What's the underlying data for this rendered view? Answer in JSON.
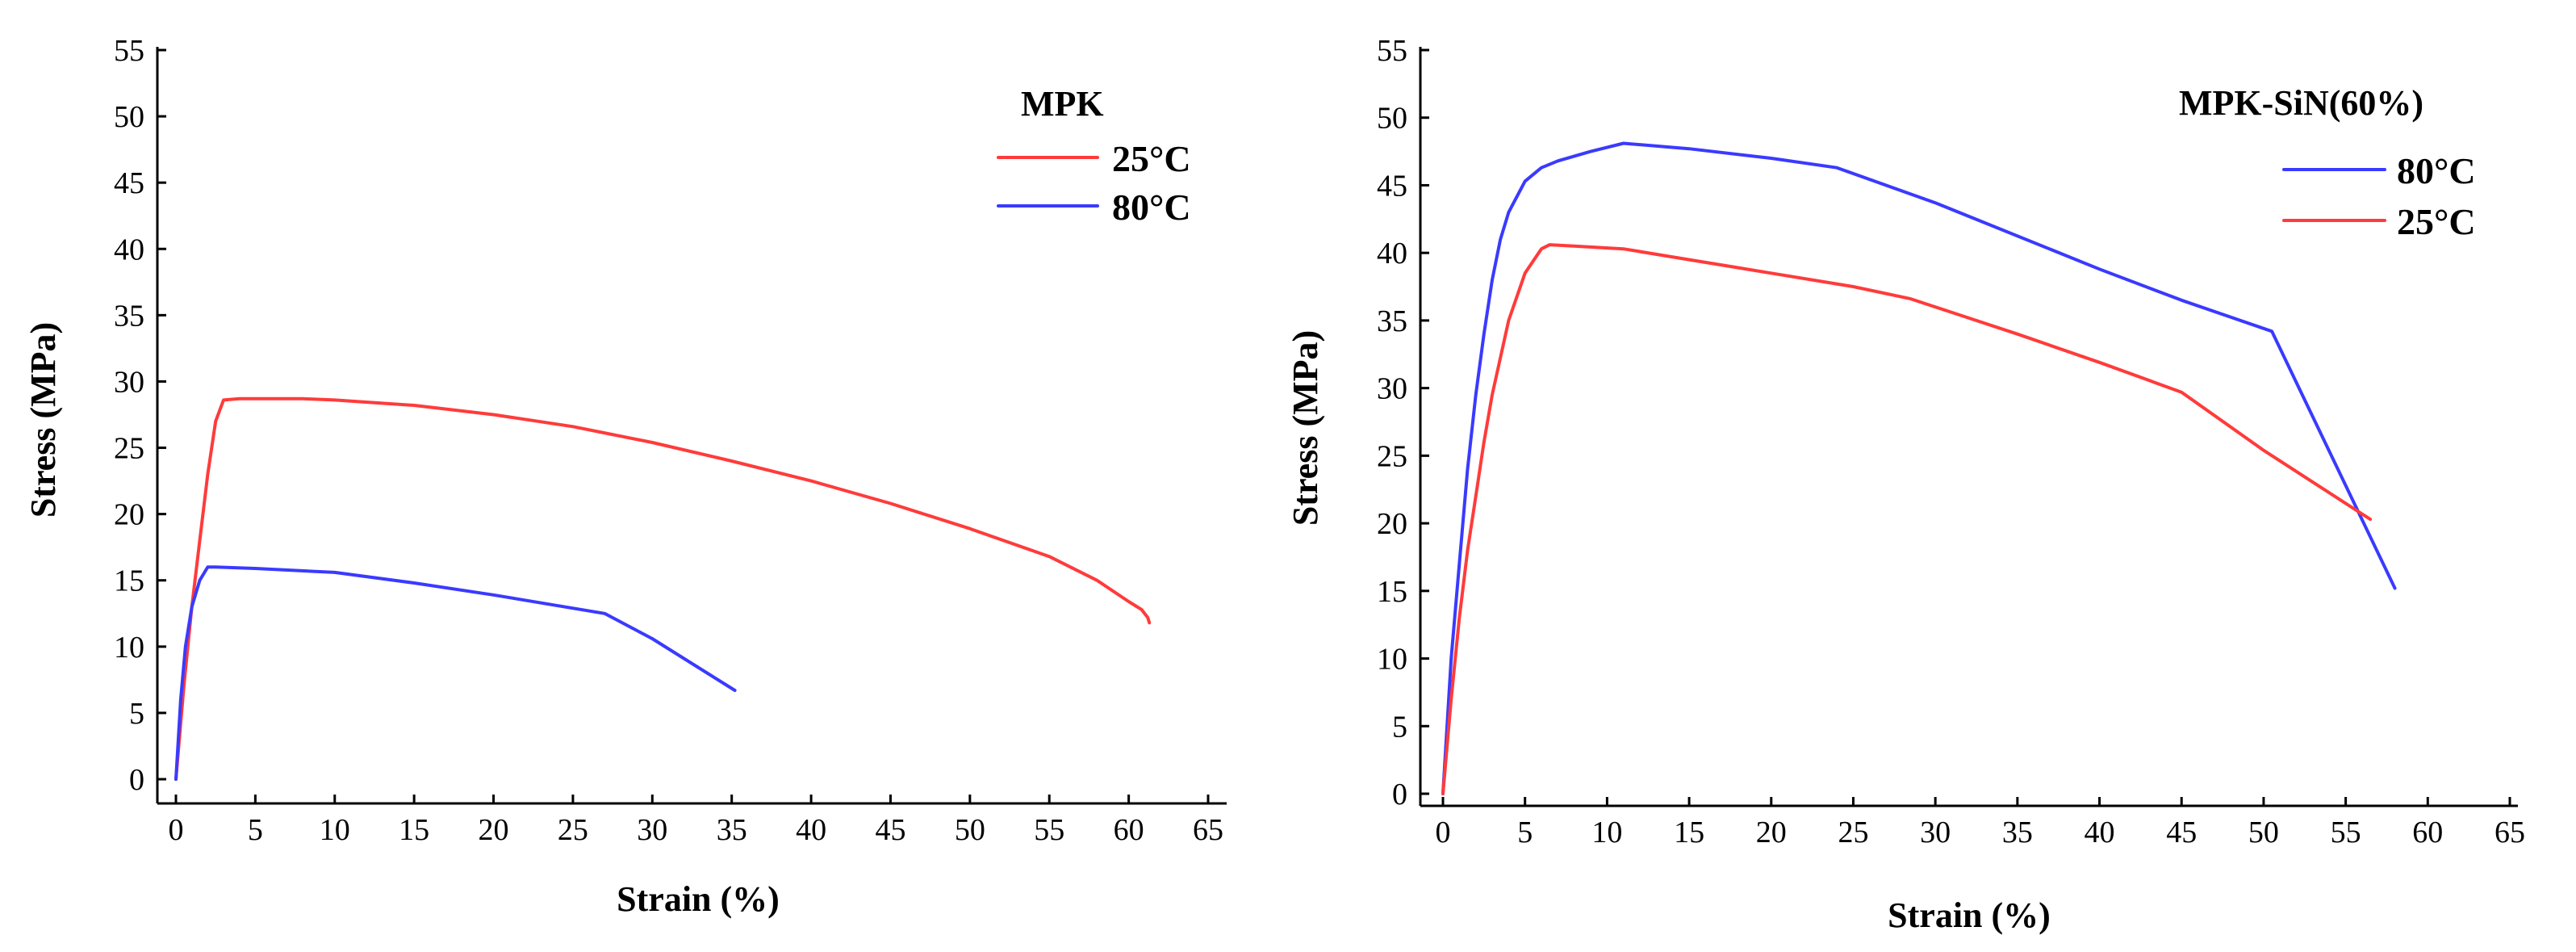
{
  "colors": {
    "red": "#ff3b3b",
    "blue": "#3a3aff",
    "axis": "#000000"
  },
  "chart_data": [
    {
      "type": "line",
      "title": "",
      "legend_title": "MPK",
      "legend_position": "top-right",
      "xlabel": "Strain (%)",
      "ylabel": "Stress (MPa)",
      "xlim": [
        0,
        65
      ],
      "ylim": [
        0,
        55
      ],
      "xticks": [
        0,
        5,
        10,
        15,
        20,
        25,
        30,
        35,
        40,
        45,
        50,
        55,
        60,
        65
      ],
      "yticks": [
        0,
        5,
        10,
        15,
        20,
        25,
        30,
        35,
        40,
        45,
        50,
        55
      ],
      "grid": false,
      "series": [
        {
          "name": "25°C",
          "color": "#ff3b3b",
          "x": [
            0,
            0.5,
            1,
            1.5,
            2,
            2.5,
            3,
            4,
            5,
            8,
            10,
            15,
            20,
            25,
            30,
            35,
            40,
            45,
            50,
            55,
            58,
            60,
            60.8,
            61.2,
            61.3
          ],
          "y": [
            0,
            7,
            13,
            18,
            23,
            27,
            28.6,
            28.7,
            28.7,
            28.7,
            28.6,
            28.2,
            27.5,
            26.6,
            25.4,
            24.0,
            22.5,
            20.8,
            18.9,
            16.8,
            15.0,
            13.4,
            12.8,
            12.2,
            11.8
          ]
        },
        {
          "name": "80°C",
          "color": "#3a3aff",
          "x": [
            0,
            0.3,
            0.6,
            1,
            1.5,
            2,
            2.5,
            5,
            10,
            15,
            20,
            27,
            30,
            35.2
          ],
          "y": [
            0,
            6,
            10,
            13,
            15,
            16,
            16,
            15.9,
            15.6,
            14.8,
            13.9,
            12.5,
            10.6,
            6.7
          ]
        }
      ]
    },
    {
      "type": "line",
      "title": "",
      "legend_title": "MPK-SiN(60%)",
      "legend_position": "top-right",
      "xlabel": "Strain (%)",
      "ylabel": "Stress (MPa)",
      "xlim": [
        0,
        65
      ],
      "ylim": [
        0,
        55
      ],
      "xticks": [
        0,
        5,
        10,
        15,
        20,
        25,
        30,
        35,
        40,
        45,
        50,
        55,
        60,
        65
      ],
      "yticks": [
        0,
        5,
        10,
        15,
        20,
        25,
        30,
        35,
        40,
        45,
        50,
        55
      ],
      "grid": false,
      "series": [
        {
          "name": "80°C",
          "color": "#3a3aff",
          "x": [
            0,
            0.5,
            1,
            1.5,
            2,
            2.5,
            3,
            3.5,
            4,
            5,
            6,
            7,
            9,
            11,
            15,
            20,
            24,
            30,
            40,
            45,
            50.5,
            58
          ],
          "y": [
            0,
            10,
            17,
            24,
            29.5,
            34,
            38,
            41,
            43,
            45.3,
            46.3,
            46.8,
            47.5,
            48.1,
            47.7,
            47.0,
            46.3,
            43.7,
            38.8,
            36.5,
            34.2,
            15.2
          ]
        },
        {
          "name": "25°C",
          "color": "#ff3b3b",
          "x": [
            0,
            0.5,
            1,
            1.5,
            2,
            2.5,
            3,
            4,
            5,
            6,
            6.5,
            8,
            11,
            15,
            20,
            25,
            28.5,
            35,
            40,
            45,
            50,
            56.5
          ],
          "y": [
            0,
            7,
            13,
            18,
            22,
            26,
            29.5,
            35,
            38.5,
            40.3,
            40.6,
            40.5,
            40.3,
            39.5,
            38.5,
            37.5,
            36.6,
            34.0,
            31.9,
            29.7,
            25.4,
            20.3
          ]
        }
      ]
    }
  ]
}
